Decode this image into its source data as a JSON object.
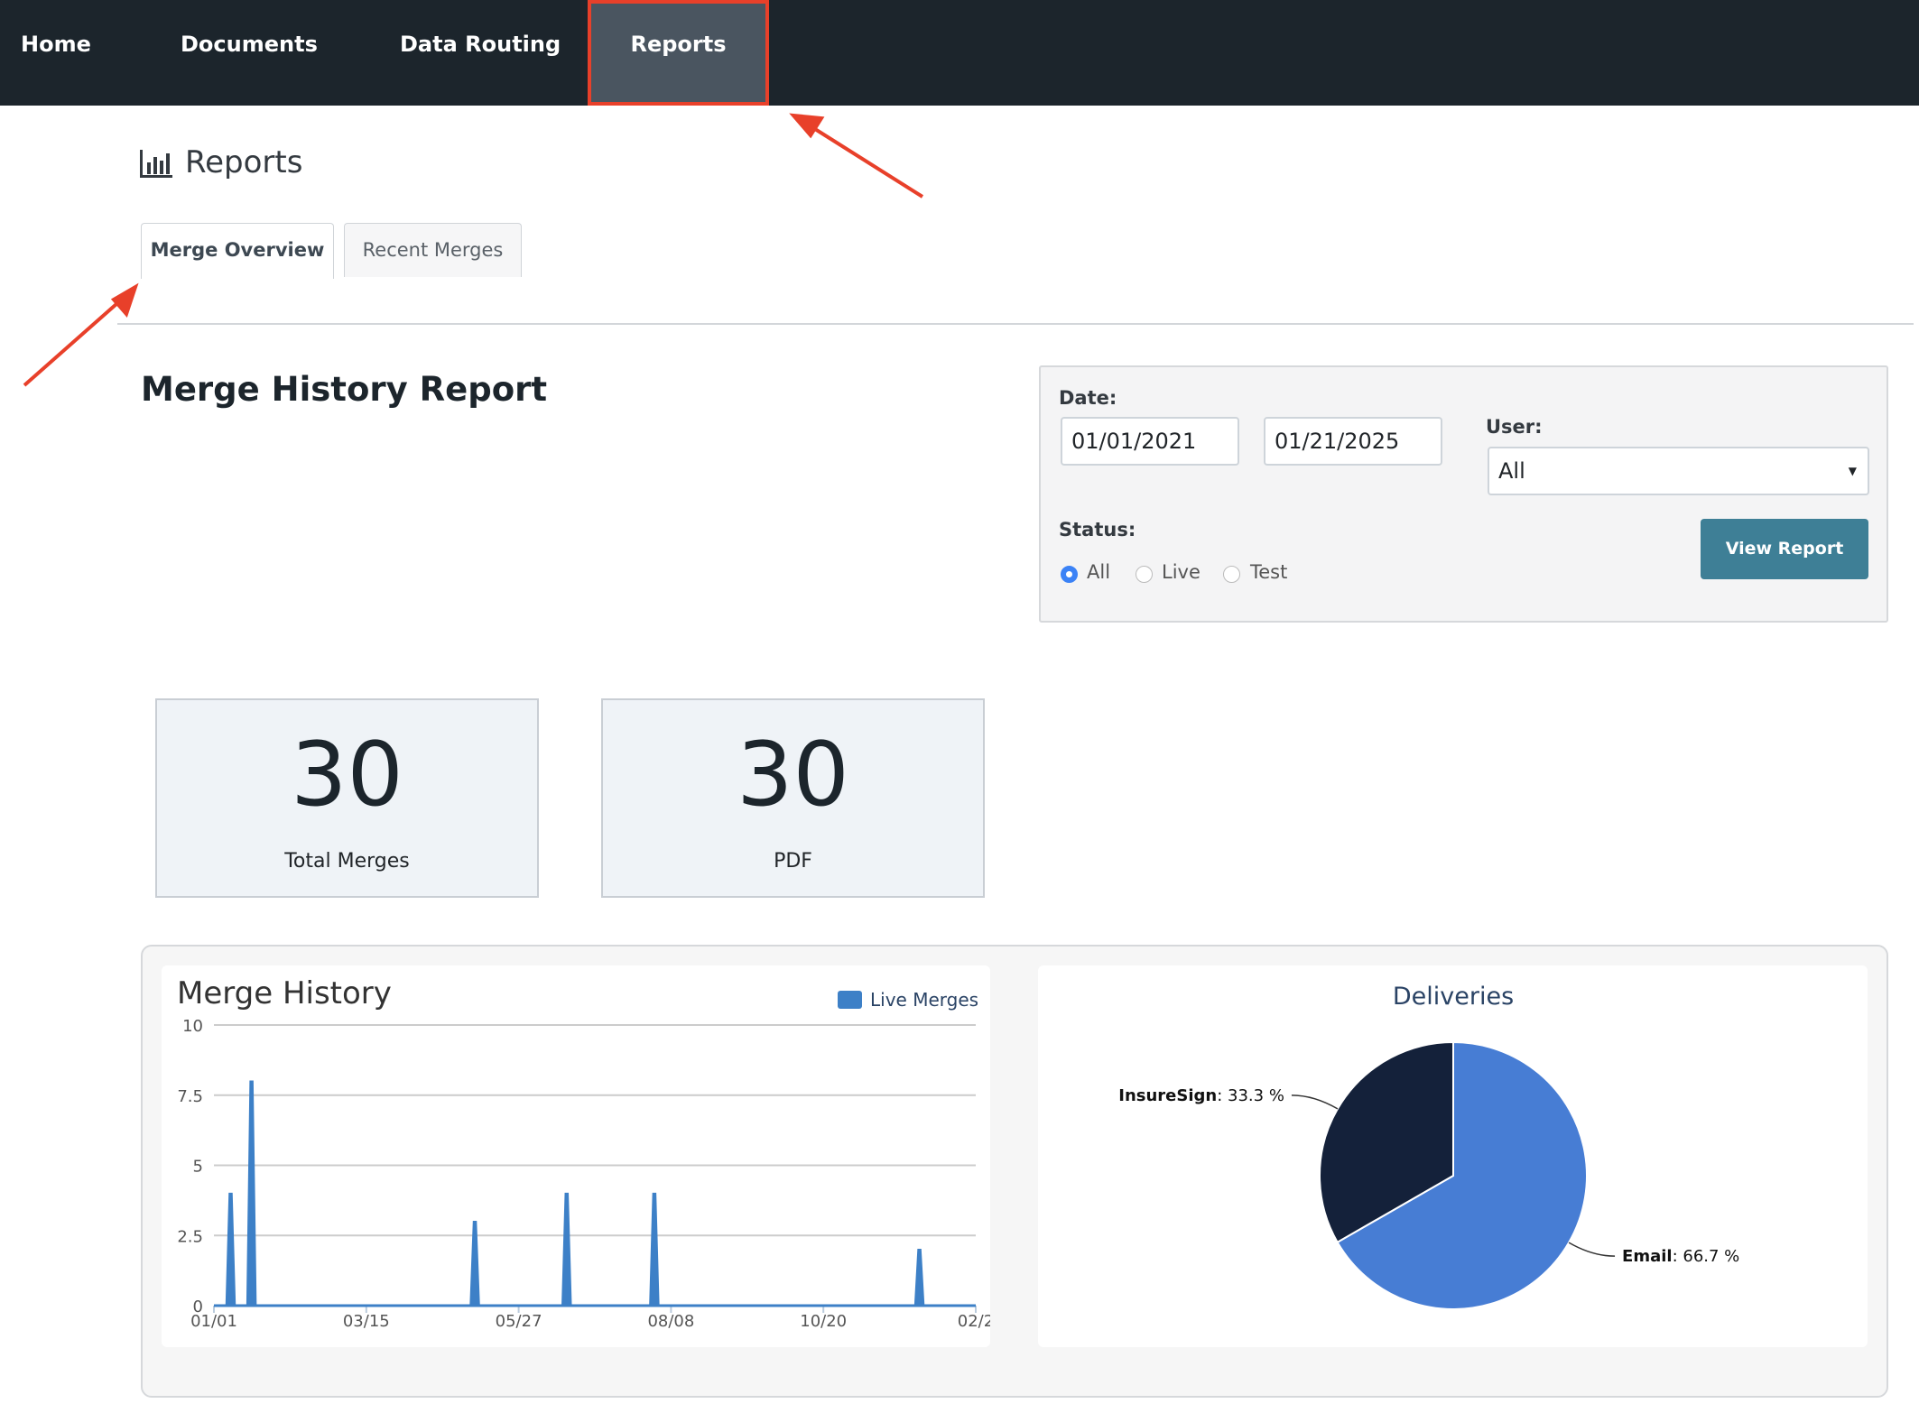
{
  "nav": {
    "items": [
      "Home",
      "Documents",
      "Data Routing",
      "Reports"
    ],
    "active": "Reports"
  },
  "page": {
    "title": "Reports",
    "icon": "bar-chart-icon"
  },
  "tabs": [
    {
      "label": "Merge Overview",
      "active": true
    },
    {
      "label": "Recent Merges",
      "active": false
    }
  ],
  "report": {
    "title": "Merge History Report"
  },
  "filter": {
    "date_label": "Date:",
    "date_from": "01/01/2021",
    "date_to": "01/21/2025",
    "user_label": "User:",
    "user_value": "All",
    "status_label": "Status:",
    "status_options": [
      "All",
      "Live",
      "Test"
    ],
    "status_selected": "All",
    "view_button": "View Report"
  },
  "stats": [
    {
      "value": "30",
      "label": "Total Merges"
    },
    {
      "value": "30",
      "label": "PDF"
    }
  ],
  "colors": {
    "nav_bg": "#1c252c",
    "accent": "#3e7f96",
    "series": "#3d80c7",
    "pie_email": "#477dd4",
    "pie_insuresign": "#14213a",
    "annotation": "#e8402a"
  },
  "chart_data": [
    {
      "type": "area",
      "title": "Merge History",
      "legend": [
        "Live Merges"
      ],
      "legend_position": "top-right",
      "x_ticks": [
        "01/01",
        "03/15",
        "05/27",
        "08/08",
        "10/20",
        "02/2"
      ],
      "y_ticks": [
        "0",
        "2.5",
        "5",
        "7.5",
        "10"
      ],
      "ylim": [
        0,
        10
      ],
      "grid": true,
      "series": [
        {
          "name": "Live Merges",
          "points": [
            {
              "x": "01/09",
              "y": 4
            },
            {
              "x": "01/19",
              "y": 8
            },
            {
              "x": "05/06",
              "y": 3
            },
            {
              "x": "06/19",
              "y": 4
            },
            {
              "x": "07/31",
              "y": 4
            },
            {
              "x": "12/05",
              "y": 2
            }
          ]
        }
      ]
    },
    {
      "type": "pie",
      "title": "Deliveries",
      "slices": [
        {
          "name": "Email",
          "value": 66.7,
          "label": "66.7 %"
        },
        {
          "name": "InsureSign",
          "value": 33.3,
          "label": "33.3 %"
        }
      ]
    }
  ]
}
